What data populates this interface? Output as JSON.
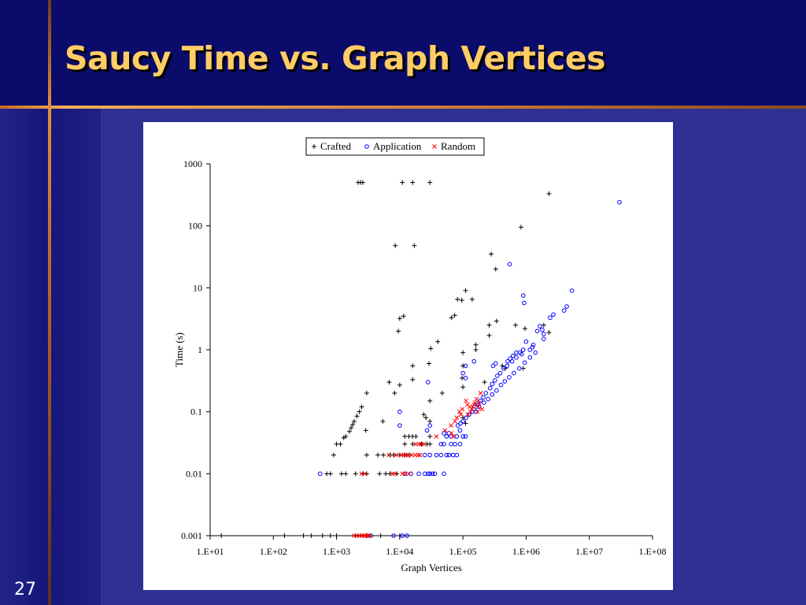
{
  "slide": {
    "title": "Saucy Time vs. Graph Vertices",
    "number": "27"
  },
  "chart_data": {
    "type": "scatter",
    "xlabel": "Graph Vertices",
    "ylabel": "Time (s)",
    "x_scale": "log",
    "y_scale": "log",
    "xlim": [
      10,
      100000000
    ],
    "ylim": [
      0.001,
      1000
    ],
    "x_ticks": [
      "1.E+01",
      "1.E+02",
      "1.E+03",
      "1.E+04",
      "1.E+05",
      "1.E+06",
      "1.E+07",
      "1.E+08"
    ],
    "y_ticks": [
      "0.001",
      "0.01",
      "0.1",
      "1",
      "10",
      "100",
      "1000"
    ],
    "legend_position": "top-center",
    "grid": false,
    "series": [
      {
        "name": "Crafted",
        "marker": "plus",
        "color": "#000000",
        "points": [
          [
            2200,
            500
          ],
          [
            2400,
            500
          ],
          [
            2600,
            500
          ],
          [
            11000,
            500
          ],
          [
            16000,
            500
          ],
          [
            30000,
            500
          ],
          [
            2300000,
            330
          ],
          [
            830000,
            95
          ],
          [
            8500,
            48
          ],
          [
            17000,
            48
          ],
          [
            280000,
            35
          ],
          [
            330000,
            20
          ],
          [
            110000,
            9
          ],
          [
            82000,
            6.5
          ],
          [
            96000,
            6.3
          ],
          [
            140000,
            6.5
          ],
          [
            66000,
            3.3
          ],
          [
            74000,
            3.6
          ],
          [
            10000,
            3.2
          ],
          [
            11500,
            3.5
          ],
          [
            9500,
            2
          ],
          [
            260000,
            2.5
          ],
          [
            260000,
            1.7
          ],
          [
            340000,
            2.9
          ],
          [
            680000,
            2.5
          ],
          [
            960000,
            2.2
          ],
          [
            1900000,
            2.5
          ],
          [
            2300000,
            1.9
          ],
          [
            160000,
            1.2
          ],
          [
            160000,
            1
          ],
          [
            31000,
            1.05
          ],
          [
            40000,
            1.35
          ],
          [
            100000,
            0.9
          ],
          [
            100000,
            0.55
          ],
          [
            16000,
            0.55
          ],
          [
            29000,
            0.6
          ],
          [
            420000,
            0.55
          ],
          [
            470000,
            0.5
          ],
          [
            900000,
            0.5
          ],
          [
            6800,
            0.3
          ],
          [
            8300,
            0.2
          ],
          [
            10000,
            0.27
          ],
          [
            16000,
            0.33
          ],
          [
            97000,
            0.35
          ],
          [
            100000,
            0.25
          ],
          [
            220000,
            0.3
          ],
          [
            3000,
            0.2
          ],
          [
            30000,
            0.15
          ],
          [
            47000,
            0.2
          ],
          [
            2500,
            0.12
          ],
          [
            2300,
            0.1
          ],
          [
            2100,
            0.085
          ],
          [
            1900,
            0.07
          ],
          [
            1800,
            0.062
          ],
          [
            1700,
            0.055
          ],
          [
            1600,
            0.048
          ],
          [
            2900,
            0.05
          ],
          [
            5400,
            0.07
          ],
          [
            24000,
            0.09
          ],
          [
            26000,
            0.08
          ],
          [
            30000,
            0.07
          ],
          [
            100000,
            0.08
          ],
          [
            110000,
            0.065
          ],
          [
            1300,
            0.038
          ],
          [
            1400,
            0.04
          ],
          [
            1150,
            0.03
          ],
          [
            1000,
            0.03
          ],
          [
            3000,
            0.02
          ],
          [
            900,
            0.02
          ],
          [
            12000,
            0.04
          ],
          [
            14000,
            0.04
          ],
          [
            16000,
            0.04
          ],
          [
            18000,
            0.04
          ],
          [
            30000,
            0.04
          ],
          [
            12000,
            0.03
          ],
          [
            16000,
            0.03
          ],
          [
            22000,
            0.03
          ],
          [
            27000,
            0.03
          ],
          [
            30000,
            0.03
          ],
          [
            4500,
            0.02
          ],
          [
            5500,
            0.02
          ],
          [
            7000,
            0.02
          ],
          [
            8000,
            0.02
          ],
          [
            10000,
            0.02
          ],
          [
            12000,
            0.02
          ],
          [
            14000,
            0.02
          ],
          [
            700,
            0.01
          ],
          [
            800,
            0.01
          ],
          [
            1200,
            0.01
          ],
          [
            1400,
            0.01
          ],
          [
            2000,
            0.01
          ],
          [
            2600,
            0.01
          ],
          [
            3000,
            0.01
          ],
          [
            4800,
            0.01
          ],
          [
            6000,
            0.01
          ],
          [
            7000,
            0.01
          ],
          [
            9000,
            0.01
          ],
          [
            15,
            0.001
          ],
          [
            150,
            0.001
          ],
          [
            300,
            0.001
          ],
          [
            400,
            0.001
          ],
          [
            600,
            0.001
          ],
          [
            800,
            0.001
          ],
          [
            1000,
            0.001
          ],
          [
            2000,
            0.001
          ],
          [
            3000,
            0.001
          ],
          [
            5000,
            0.001
          ],
          [
            10000,
            0.001
          ]
        ]
      },
      {
        "name": "Application",
        "marker": "circle",
        "color": "#0000ff",
        "points": [
          [
            30000000,
            240
          ],
          [
            550000,
            24
          ],
          [
            5300000,
            9
          ],
          [
            900000,
            7.5
          ],
          [
            930000,
            5.7
          ],
          [
            4400000,
            5
          ],
          [
            4000000,
            4.3
          ],
          [
            2700000,
            3.7
          ],
          [
            2400000,
            3.3
          ],
          [
            1650000,
            2.4
          ],
          [
            1800000,
            2.1
          ],
          [
            1900000,
            1.8
          ],
          [
            1900000,
            1.5
          ],
          [
            1500000,
            2
          ],
          [
            1300000,
            1.2
          ],
          [
            1250000,
            1.1
          ],
          [
            1000000,
            1.35
          ],
          [
            1150000,
            1
          ],
          [
            850000,
            0.85
          ],
          [
            900000,
            1
          ],
          [
            800000,
            0.9
          ],
          [
            700000,
            0.75
          ],
          [
            600000,
            0.65
          ],
          [
            500000,
            0.55
          ],
          [
            440000,
            0.5
          ],
          [
            390000,
            0.42
          ],
          [
            350000,
            0.38
          ],
          [
            320000,
            0.32
          ],
          [
            290000,
            0.28
          ],
          [
            270000,
            0.24
          ],
          [
            230000,
            0.2
          ],
          [
            210000,
            0.17
          ],
          [
            190000,
            0.15
          ],
          [
            170000,
            0.13
          ],
          [
            150000,
            0.11
          ],
          [
            140000,
            0.1
          ],
          [
            125000,
            0.09
          ],
          [
            112000,
            0.08
          ],
          [
            100000,
            0.07
          ],
          [
            92000,
            0.065
          ],
          [
            83000,
            0.06
          ],
          [
            1400000,
            0.9
          ],
          [
            1150000,
            0.75
          ],
          [
            950000,
            0.62
          ],
          [
            780000,
            0.5
          ],
          [
            640000,
            0.42
          ],
          [
            540000,
            0.36
          ],
          [
            460000,
            0.31
          ],
          [
            400000,
            0.27
          ],
          [
            340000,
            0.22
          ],
          [
            290000,
            0.19
          ],
          [
            250000,
            0.16
          ],
          [
            215000,
            0.14
          ],
          [
            180000,
            0.12
          ],
          [
            160000,
            0.1
          ],
          [
            700000,
            0.9
          ],
          [
            620000,
            0.8
          ],
          [
            560000,
            0.72
          ],
          [
            510000,
            0.65
          ],
          [
            330000,
            0.6
          ],
          [
            300000,
            0.55
          ],
          [
            150000,
            0.65
          ],
          [
            110000,
            0.55
          ],
          [
            100000,
            0.42
          ],
          [
            110000,
            0.35
          ],
          [
            28000,
            0.3
          ],
          [
            10000,
            0.1
          ],
          [
            10000,
            0.06
          ],
          [
            27000,
            0.05
          ],
          [
            30000,
            0.06
          ],
          [
            90000,
            0.05
          ],
          [
            100000,
            0.04
          ],
          [
            110000,
            0.04
          ],
          [
            50000,
            0.045
          ],
          [
            55000,
            0.04
          ],
          [
            60000,
            0.045
          ],
          [
            65000,
            0.04
          ],
          [
            45000,
            0.03
          ],
          [
            50000,
            0.03
          ],
          [
            65000,
            0.03
          ],
          [
            75000,
            0.03
          ],
          [
            80000,
            0.04
          ],
          [
            90000,
            0.03
          ],
          [
            25000,
            0.02
          ],
          [
            30000,
            0.02
          ],
          [
            38000,
            0.02
          ],
          [
            45000,
            0.02
          ],
          [
            55000,
            0.02
          ],
          [
            60000,
            0.02
          ],
          [
            70000,
            0.02
          ],
          [
            80000,
            0.02
          ],
          [
            12000,
            0.01
          ],
          [
            15000,
            0.01
          ],
          [
            20000,
            0.01
          ],
          [
            25000,
            0.01
          ],
          [
            28000,
            0.01
          ],
          [
            30000,
            0.01
          ],
          [
            33000,
            0.01
          ],
          [
            36000,
            0.01
          ],
          [
            50000,
            0.01
          ],
          [
            550,
            0.01
          ],
          [
            3500,
            0.001
          ],
          [
            8000,
            0.001
          ],
          [
            11000,
            0.001
          ],
          [
            13000,
            0.001
          ]
        ]
      },
      {
        "name": "Random",
        "marker": "x",
        "color": "#ff0000",
        "points": [
          [
            165000,
            0.16
          ],
          [
            155000,
            0.14
          ],
          [
            150000,
            0.13
          ],
          [
            142000,
            0.12
          ],
          [
            138000,
            0.11
          ],
          [
            132000,
            0.1
          ],
          [
            128000,
            0.12
          ],
          [
            120000,
            0.09
          ],
          [
            118000,
            0.13
          ],
          [
            112000,
            0.15
          ],
          [
            170000,
            0.1
          ],
          [
            175000,
            0.12
          ],
          [
            180000,
            0.14
          ],
          [
            190000,
            0.2
          ],
          [
            200000,
            0.11
          ],
          [
            88000,
            0.1
          ],
          [
            93000,
            0.09
          ],
          [
            98000,
            0.11
          ],
          [
            80000,
            0.08
          ],
          [
            75000,
            0.07
          ],
          [
            65000,
            0.06
          ],
          [
            52000,
            0.05
          ],
          [
            38000,
            0.04
          ],
          [
            66000,
            0.045
          ],
          [
            70000,
            0.04
          ],
          [
            18000,
            0.03
          ],
          [
            20000,
            0.03
          ],
          [
            22000,
            0.03
          ],
          [
            24000,
            0.03
          ],
          [
            6800,
            0.02
          ],
          [
            8800,
            0.02
          ],
          [
            10500,
            0.02
          ],
          [
            11500,
            0.02
          ],
          [
            12500,
            0.02
          ],
          [
            13500,
            0.02
          ],
          [
            15500,
            0.02
          ],
          [
            17500,
            0.02
          ],
          [
            19500,
            0.02
          ],
          [
            21000,
            0.02
          ],
          [
            2500,
            0.01
          ],
          [
            2800,
            0.01
          ],
          [
            7800,
            0.01
          ],
          [
            8400,
            0.01
          ],
          [
            11000,
            0.01
          ],
          [
            12000,
            0.01
          ],
          [
            14000,
            0.01
          ],
          [
            1900,
            0.001
          ],
          [
            2100,
            0.001
          ],
          [
            2300,
            0.001
          ],
          [
            2500,
            0.001
          ],
          [
            2700,
            0.001
          ],
          [
            2900,
            0.001
          ],
          [
            3100,
            0.001
          ],
          [
            3300,
            0.001
          ]
        ]
      }
    ]
  }
}
